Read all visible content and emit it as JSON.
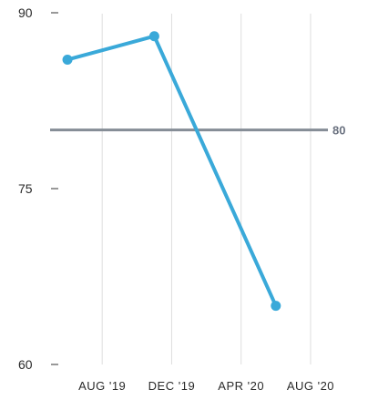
{
  "chart_data": {
    "type": "line",
    "title": "",
    "xlabel": "",
    "ylabel": "",
    "x": [
      "2019-06",
      "2019-11",
      "2020-06"
    ],
    "series": [
      {
        "values": [
          86,
          88,
          65
        ],
        "color": "#3aa9d9"
      }
    ],
    "x_ticks": [
      "AUG '19",
      "DEC '19",
      "APR '20",
      "AUG '20"
    ],
    "x_tick_dates": [
      "2019-08",
      "2019-12",
      "2020-04",
      "2020-08"
    ],
    "xlim": [
      "2019-05",
      "2020-09"
    ],
    "y_ticks": [
      "90",
      "75",
      "60"
    ],
    "y_tick_values": [
      90,
      75,
      60
    ],
    "ylim": [
      60,
      90
    ],
    "reference_line": {
      "value": 80,
      "label": "80",
      "color": "#858d96"
    },
    "grid": {
      "vertical": true,
      "horizontal": false,
      "color": "#dddddd"
    },
    "legend": "none"
  }
}
